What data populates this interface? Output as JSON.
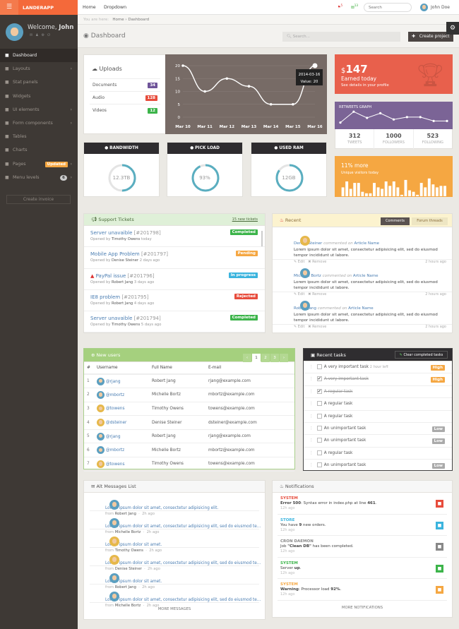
{
  "brand": {
    "name": "LANDERAPP",
    "menu_icon": "menu-toggle-icon"
  },
  "sidebar": {
    "welcome": "Welcome,",
    "user": "John",
    "create_invoice": "Create invoice",
    "items": [
      {
        "label": "Dashboard",
        "icon": "dashboard-icon",
        "active": true
      },
      {
        "label": "Layouts",
        "icon": "layouts-icon",
        "arrow": true
      },
      {
        "label": "Stat panels",
        "icon": "stat-panels-icon"
      },
      {
        "label": "Widgets",
        "icon": "widgets-icon"
      },
      {
        "label": "UI elements",
        "icon": "monitor-icon",
        "arrow": true
      },
      {
        "label": "Form components",
        "icon": "form-icon",
        "arrow": true
      },
      {
        "label": "Tables",
        "icon": "table-icon"
      },
      {
        "label": "Charts",
        "icon": "chart-icon"
      },
      {
        "label": "Pages",
        "icon": "pages-icon",
        "badge": "Updated",
        "arrow": true
      },
      {
        "label": "Menu levels",
        "icon": "sitemap-icon",
        "badge": "6",
        "arrow": true
      }
    ]
  },
  "topnav": {
    "links": [
      "Home",
      "Dropdown"
    ],
    "notif_red": "5",
    "notif_green": "13",
    "search_placeholder": "Search",
    "user": "John Doe"
  },
  "breadcrumb": {
    "prefix": "You are here:",
    "home": "Home",
    "current": "Dashboard"
  },
  "page": {
    "title": "Dashboard",
    "search_placeholder": "Search...",
    "create_project": "Create project"
  },
  "uploads": {
    "title": "Uploads",
    "items": [
      {
        "label": "Documents",
        "count": "34",
        "color": "#6f5499"
      },
      {
        "label": "Audio",
        "count": "128",
        "color": "#e74c3c"
      },
      {
        "label": "Videos",
        "count": "12",
        "color": "#3cb44a"
      }
    ]
  },
  "chart_data": {
    "type": "line",
    "categories": [
      "Mar 10",
      "Mar 11",
      "Mar 12",
      "Mar 13",
      "Mar 14",
      "Mar 15",
      "Mar 16"
    ],
    "values": [
      20,
      10,
      15,
      12,
      5,
      5,
      20
    ],
    "ylim": [
      0,
      20
    ],
    "yticks": [
      0,
      5,
      10,
      15,
      20
    ],
    "grid": true,
    "tooltip": {
      "date": "2014-03-16",
      "value_label": "Value: 20"
    }
  },
  "earned": {
    "currency": "$",
    "amount": "147",
    "label": "Earned today",
    "sub": "See details in your profile",
    "color": "#e8604c"
  },
  "retweets": {
    "title": "RETWEETS GRAPH",
    "values": [
      2,
      9,
      5,
      8,
      4,
      5.5,
      5.5,
      3,
      3
    ],
    "color": "#7b6496",
    "stats": [
      {
        "value": "312",
        "label": "TWEETS"
      },
      {
        "value": "1000",
        "label": "FOLLOWERS"
      },
      {
        "value": "523",
        "label": "FOLLOWING"
      }
    ]
  },
  "visitors": {
    "title": "11% more",
    "sub": "Unique visitors today",
    "bars": [
      6,
      10,
      5,
      9,
      9,
      3,
      2,
      2,
      9,
      6,
      5,
      10,
      7,
      10,
      6,
      1,
      11,
      4,
      3,
      1,
      9,
      6,
      12,
      8,
      6,
      7,
      7
    ],
    "color": "#f5a742"
  },
  "gauges": [
    {
      "title": "BANDWIDTH",
      "icon": "dashboard-icon",
      "value": "12.3TB",
      "percent": 50
    },
    {
      "title": "PICK LOAD",
      "icon": "bolt-icon",
      "value": "93%",
      "percent": 93
    },
    {
      "title": "USED RAM",
      "icon": "cloud-icon",
      "value": "12GB",
      "percent": 85
    }
  ],
  "tickets": {
    "title": "Support Tickets",
    "new_link": "15 new tickets",
    "opened_by": "Opened by",
    "items": [
      {
        "title": "Server unavaible",
        "id": "[#201798]",
        "by": "Timothy Owens",
        "when": "today",
        "status": "Completed",
        "color": "#3cb44a"
      },
      {
        "title": "Mobile App Problem",
        "id": "[#201797]",
        "by": "Denise Steiner",
        "when": "2 days ago",
        "status": "Pending",
        "color": "#f5a742"
      },
      {
        "title": "PayPal issue",
        "id": "[#201796]",
        "by": "Robert Jang",
        "when": "3 days ago",
        "status": "In progress",
        "color": "#3bb4de",
        "warn": true
      },
      {
        "title": "IE8 problem",
        "id": "[#201795]",
        "by": "Robert Jang",
        "when": "4 days ago",
        "status": "Rejected",
        "color": "#e74c3c"
      },
      {
        "title": "Server unavaible",
        "id": "[#201794]",
        "by": "Timothy Owens",
        "when": "5 days ago",
        "status": "Completed",
        "color": "#3cb44a"
      }
    ]
  },
  "recent": {
    "title": "Recent",
    "tabs": [
      "Comments",
      "Forum threads"
    ],
    "commented": "commented on",
    "edit": "Edit",
    "remove": "Remove",
    "items": [
      {
        "name": "Denise Steiner",
        "article": "Article Name",
        "text": "Lorem ipsum dolor sit amet, consectetur adipisicing elit, sed do eiusmod tempor incididunt ut labore.",
        "time": "2 hours ago",
        "f": true
      },
      {
        "name": "Michelle Bortz",
        "article": "Article Name",
        "text": "Lorem ipsum dolor sit amet, consectetur adipisicing elit, sed do eiusmod tempor incididunt ut labore.",
        "time": "2 hours ago"
      },
      {
        "name": "Robert Jang",
        "article": "Article Name",
        "text": "Lorem ipsum dolor sit amet, consectetur adipisicing elit, sed do eiusmod tempor incididunt ut labore.",
        "time": "2 hours ago"
      }
    ]
  },
  "users": {
    "title": "New users",
    "pages": [
      "‹",
      "1",
      "2",
      "3",
      "›"
    ],
    "columns": [
      "#",
      "Username",
      "Full Name",
      "E-mail"
    ],
    "rows": [
      [
        "1",
        "@rjang",
        "Robert Jang",
        "rjang@example.com"
      ],
      [
        "2",
        "@mbortz",
        "Michelle Bortz",
        "mbortz@example.com"
      ],
      [
        "3",
        "@towens",
        "Timothy Owens",
        "towens@example.com"
      ],
      [
        "4",
        "@dsteiner",
        "Denise Steiner",
        "dsteiner@example.com"
      ],
      [
        "5",
        "@rjang",
        "Robert Jang",
        "rjang@example.com"
      ],
      [
        "6",
        "@mbortz",
        "Michelle Bortz",
        "mbortz@example.com"
      ],
      [
        "7",
        "@towens",
        "Timothy Owens",
        "towens@example.com"
      ]
    ]
  },
  "tasks": {
    "title": "Recent tasks",
    "clear": "Clear completed tasks",
    "items": [
      {
        "label": "A very important task",
        "note": "1 hour left",
        "badge": "High",
        "color": "#f5a742"
      },
      {
        "label": "A very important task",
        "done": true,
        "badge": "High",
        "color": "#f5a742"
      },
      {
        "label": "A regular task",
        "done": true
      },
      {
        "label": "A regular task"
      },
      {
        "label": "A regular task"
      },
      {
        "label": "An unimportant task",
        "badge": "Low",
        "color": "#aaa"
      },
      {
        "label": "An unimportant task",
        "badge": "Low",
        "color": "#aaa"
      },
      {
        "label": "A regular task"
      },
      {
        "label": "An unimportant task",
        "badge": "Low",
        "color": "#aaa"
      }
    ]
  },
  "messages": {
    "title": "Alt Messages List",
    "from": "from",
    "more": "MORE MESSAGES",
    "items": [
      {
        "text": "Lorem ipsum dolor sit amet, consectetur adipisicing elit.",
        "from": "Robert Jang",
        "time": "2h ago"
      },
      {
        "text": "Lorem ipsum dolor sit amet, consectetur adipisicing elit, sed do eiusmod te...",
        "from": "Michelle Bortz",
        "time": "2h ago"
      },
      {
        "text": "Lorem ipsum dolor sit amet.",
        "from": "Timothy Owens",
        "time": "2h ago",
        "f": true
      },
      {
        "text": "Lorem ipsum dolor sit amet, consectetur adipisicing elit, sed do eiusmod te...",
        "from": "Denise Steiner",
        "time": "2h ago",
        "f": true
      },
      {
        "text": "Lorem ipsum dolor sit amet.",
        "from": "Robert Jang",
        "time": "2h ago"
      },
      {
        "text": "Lorem ipsum dolor sit amet, consectetur adipisicing elit, sed do eiusmod te...",
        "from": "Michelle Bortz",
        "time": "2h ago"
      }
    ]
  },
  "notifications": {
    "title": "Notifications",
    "more": "MORE NOTIFICATIONS",
    "items": [
      {
        "type": "SYSTEM",
        "html": "<b>Error 500</b>: Syntax error in index.php at line <b>461</b>.",
        "time": "12h ago",
        "color": "#e74c3c",
        "icon": "error-icon"
      },
      {
        "type": "STORE",
        "html": "You have <b>9</b> new orders.",
        "time": "12h ago",
        "color": "#3bb4de",
        "icon": "truck-icon"
      },
      {
        "type": "CRON DAEMON",
        "html": "Job <b>\"Clean DB\"</b> has been completed.",
        "time": "12h ago",
        "color": "#888",
        "icon": "clock-icon"
      },
      {
        "type": "SYSTEM",
        "html": "Server <b>up</b>.",
        "time": "12h ago",
        "color": "#3cb44a",
        "icon": "unlock-icon"
      },
      {
        "type": "SYSTEM",
        "html": "<b>Warning</b>: Processor load <b>92%</b>.",
        "time": "12h ago",
        "color": "#f5a742",
        "icon": "lock-icon"
      }
    ]
  }
}
